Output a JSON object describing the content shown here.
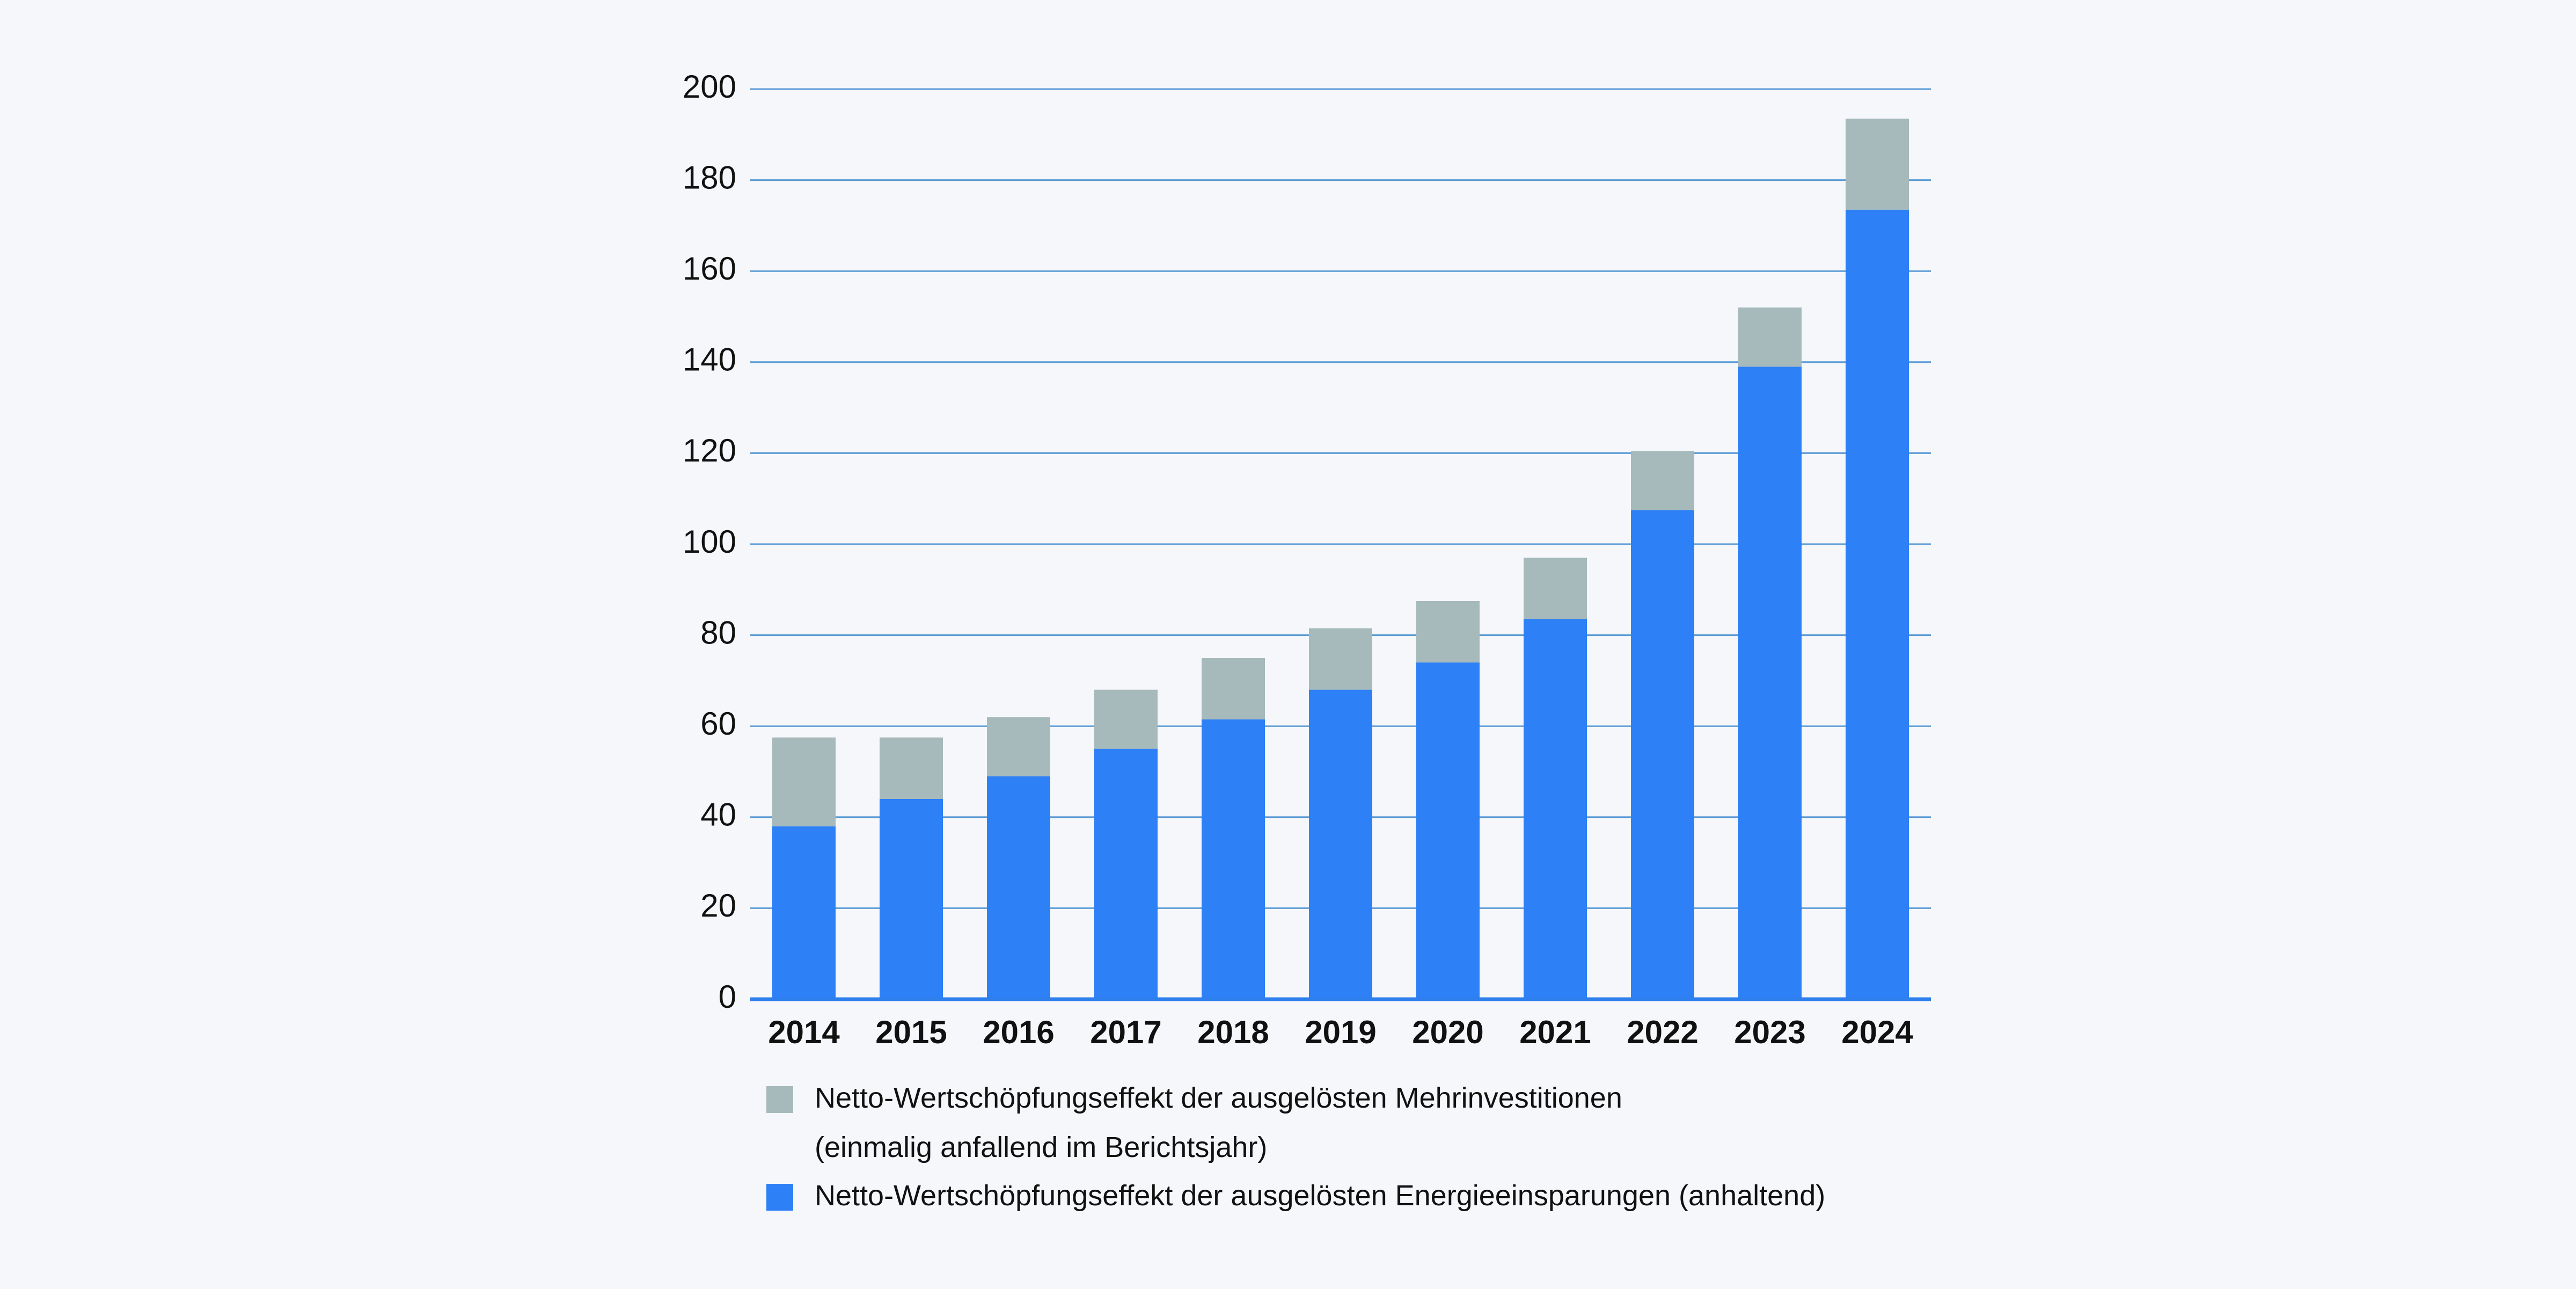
{
  "colors": {
    "background": "#f5f7fa",
    "grid": "#5b9bd5",
    "axis": "#2f80ed",
    "energy": "#2d80f6",
    "investment": "#a6b9bb"
  },
  "chart_data": {
    "type": "bar",
    "stacked": true,
    "categories": [
      "2014",
      "2015",
      "2016",
      "2017",
      "2018",
      "2019",
      "2020",
      "2021",
      "2022",
      "2023",
      "2024"
    ],
    "series": [
      {
        "name": "Netto-Wertschöpfungseffekt der ausgelösten Energieeinsparungen (anhaltend)",
        "color": "#2d80f6",
        "values": [
          38,
          44,
          49,
          55,
          61.5,
          68,
          74,
          83.5,
          107.5,
          139,
          173.5
        ]
      },
      {
        "name": "Netto-Wertschöpfungseffekt der ausgelösten Mehrinvestitionen (einmalig anfallend im Berichtsjahr)",
        "color": "#a6b9bb",
        "values": [
          19.5,
          13.5,
          13,
          13,
          13.5,
          13.5,
          13.5,
          13.5,
          13,
          13,
          20
        ]
      }
    ],
    "ylim": [
      0,
      200
    ],
    "yticks": [
      "0",
      "20",
      "40",
      "60",
      "80",
      "100",
      "120",
      "140",
      "160",
      "180",
      "200"
    ],
    "grid": true,
    "legend_position": "bottom",
    "legend": [
      {
        "lines": [
          "Netto-Wertschöpfungseffekt der ausgelösten Mehrinvestitionen",
          "(einmalig anfallend im Berichtsjahr)"
        ],
        "color": "#a6b9bb"
      },
      {
        "lines": [
          "Netto-Wertschöpfungseffekt der ausgelösten Energieeinsparungen (anhaltend)"
        ],
        "color": "#2d80f6"
      }
    ]
  }
}
